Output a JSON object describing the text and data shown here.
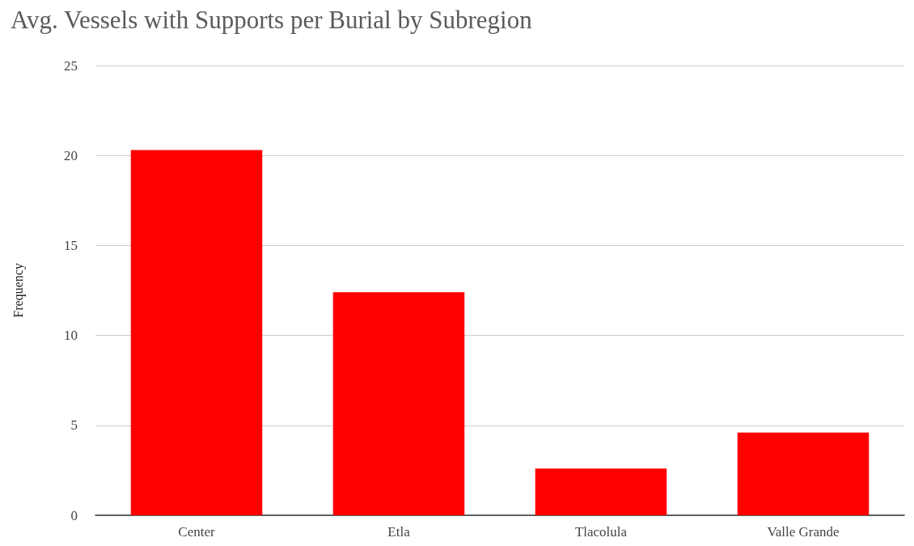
{
  "chart_data": {
    "type": "bar",
    "title": "Avg. Vessels with Supports per Burial by Subregion",
    "ylabel": "Frequency",
    "categories": [
      "Center",
      "Etla",
      "Tlacolula",
      "Valle Grande"
    ],
    "values": [
      20.3,
      12.4,
      2.6,
      4.6
    ],
    "color": "#ff0000",
    "ylim": [
      0,
      25
    ],
    "yticks": [
      0,
      5,
      10,
      15,
      20,
      25
    ],
    "grid": "y"
  }
}
